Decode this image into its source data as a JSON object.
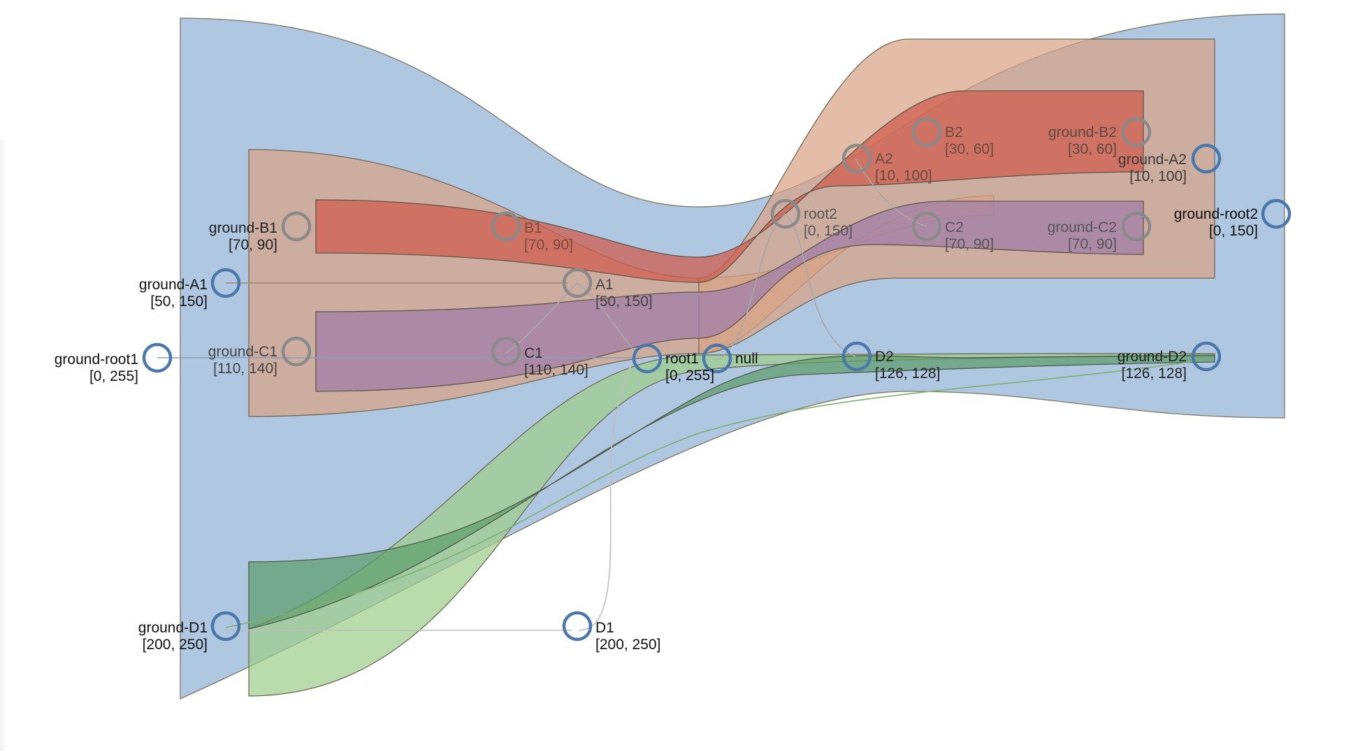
{
  "colors": {
    "blue_band": "#7fa5cf",
    "brown_band": "#d8a485",
    "red_band": "#cf5e4f",
    "purple_band": "#a07fa8",
    "dark_green_band": "#5e9e6c",
    "light_green_band": "#9fcf8c",
    "node_blue": "#4a78aa",
    "node_gray": "#8a8a8a",
    "gray_edge": "#bdbdbd"
  },
  "nodes": {
    "ground_root1": {
      "name": "ground-root1",
      "range": "[0, 255]"
    },
    "ground_A1": {
      "name": "ground-A1",
      "range": "[50, 150]"
    },
    "ground_B1": {
      "name": "ground-B1",
      "range": "[70, 90]"
    },
    "ground_C1": {
      "name": "ground-C1",
      "range": "[110, 140]"
    },
    "ground_D1": {
      "name": "ground-D1",
      "range": "[200, 250]"
    },
    "B1": {
      "name": "B1",
      "range": "[70, 90]"
    },
    "A1": {
      "name": "A1",
      "range": "[50, 150]"
    },
    "C1": {
      "name": "C1",
      "range": "[110, 140]"
    },
    "root1": {
      "name": "root1",
      "range": "[0, 255]"
    },
    "null": {
      "name": "null",
      "range": ""
    },
    "D1": {
      "name": "D1",
      "range": "[200, 250]"
    },
    "root2": {
      "name": "root2",
      "range": "[0, 150]"
    },
    "A2": {
      "name": "A2",
      "range": "[10, 100]"
    },
    "B2": {
      "name": "B2",
      "range": "[30, 60]"
    },
    "C2": {
      "name": "C2",
      "range": "[70, 90]"
    },
    "D2": {
      "name": "D2",
      "range": "[126, 128]"
    },
    "ground_B2": {
      "name": "ground-B2",
      "range": "[30, 60]"
    },
    "ground_A2": {
      "name": "ground-A2",
      "range": "[10, 100]"
    },
    "ground_C2": {
      "name": "ground-C2",
      "range": "[70, 90]"
    },
    "ground_root2": {
      "name": "ground-root2",
      "range": "[0, 150]"
    },
    "ground_D2": {
      "name": "ground-D2",
      "range": "[126, 128]"
    }
  }
}
